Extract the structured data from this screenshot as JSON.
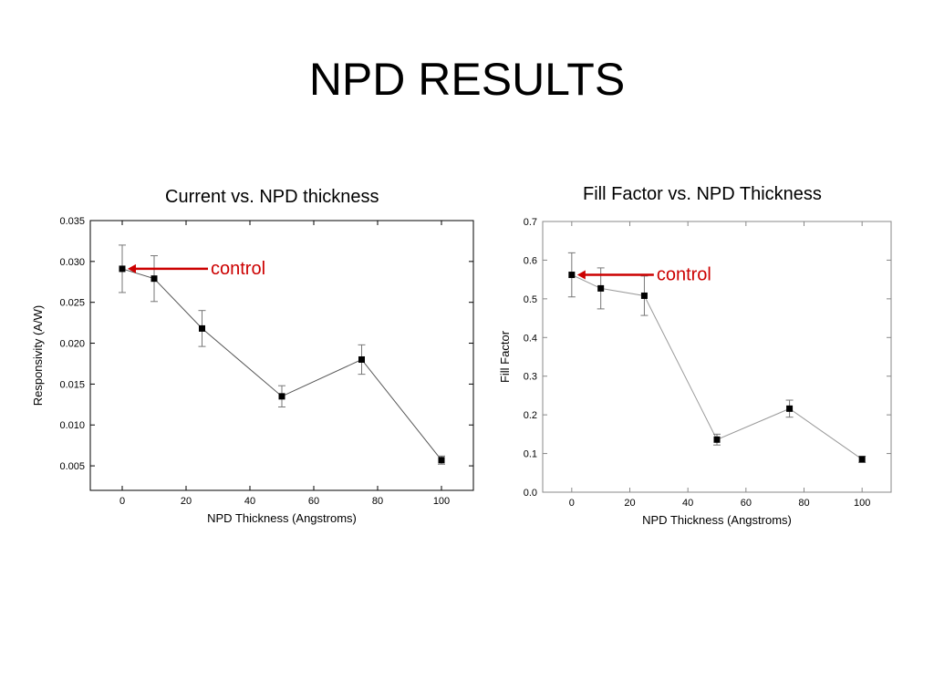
{
  "slide": {
    "title": "NPD RESULTS"
  },
  "chart_data": [
    {
      "type": "line",
      "title": "Current vs. NPD thickness",
      "xlabel": "NPD Thickness (Angstroms)",
      "ylabel": "Responsivity (A/W)",
      "xlim": [
        -10,
        110
      ],
      "ylim": [
        0.002,
        0.035
      ],
      "xticks": [
        0,
        20,
        40,
        60,
        80,
        100
      ],
      "xtick_labels": [
        "0",
        "20",
        "40",
        "60",
        "80",
        "100"
      ],
      "yticks": [
        0.005,
        0.01,
        0.015,
        0.02,
        0.025,
        0.03,
        0.035
      ],
      "ytick_labels": [
        "0.005",
        "0.010",
        "0.015",
        "0.020",
        "0.025",
        "0.030",
        "0.035"
      ],
      "grid": false,
      "line_color": "#555555",
      "series": [
        {
          "x": [
            0,
            10,
            25,
            50,
            75,
            100
          ],
          "values": [
            0.0291,
            0.0279,
            0.0218,
            0.0135,
            0.018,
            0.0057
          ],
          "error": [
            0.0029,
            0.0028,
            0.0022,
            0.0013,
            0.0018,
            0.0005
          ]
        }
      ],
      "annotations": [
        {
          "text": "control",
          "x": 0,
          "y": 0.0291,
          "color": "#cc0000"
        }
      ]
    },
    {
      "type": "line",
      "title": "Fill Factor vs. NPD Thickness",
      "xlabel": "NPD Thickness (Angstroms)",
      "ylabel": "Fill Factor",
      "xlim": [
        -10,
        110
      ],
      "ylim": [
        0.0,
        0.7
      ],
      "xticks": [
        0,
        20,
        40,
        60,
        80,
        100
      ],
      "xtick_labels": [
        "0",
        "20",
        "40",
        "60",
        "80",
        "100"
      ],
      "yticks": [
        0,
        0.1,
        0.2,
        0.3,
        0.4,
        0.5,
        0.6,
        0.7
      ],
      "ytick_labels": [
        "0.0",
        "0.1",
        "0.2",
        "0.3",
        "0.4",
        "0.5",
        "0.6",
        "0.7"
      ],
      "grid": false,
      "line_color": "#999999",
      "series": [
        {
          "x": [
            0,
            10,
            25,
            50,
            75,
            100
          ],
          "values": [
            0.562,
            0.527,
            0.508,
            0.136,
            0.216,
            0.085
          ],
          "error": [
            0.057,
            0.053,
            0.051,
            0.014,
            0.022,
            0.008
          ]
        }
      ],
      "annotations": [
        {
          "text": "control",
          "x": 0,
          "y": 0.562,
          "color": "#cc0000"
        }
      ]
    }
  ]
}
